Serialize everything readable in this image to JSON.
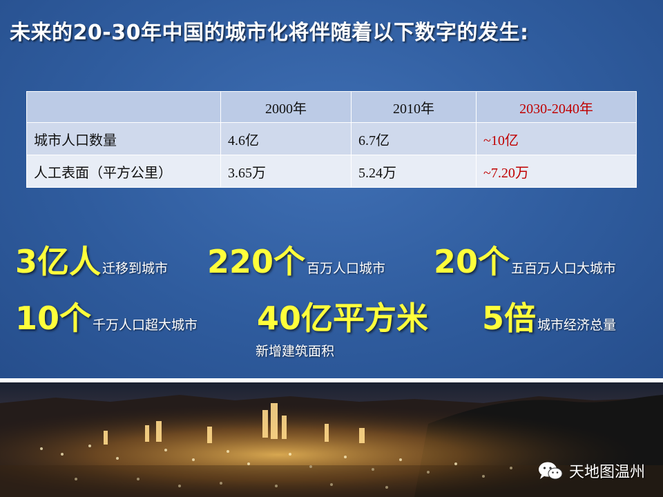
{
  "slide": {
    "title": "未来的20-30年中国的城市化将伴随着以下数字的发生:"
  },
  "table": {
    "headers": [
      "",
      "2000年",
      "2010年",
      "2030-2040年"
    ],
    "rows": [
      {
        "label": "城市人口数量",
        "y2000": "4.6亿",
        "y2010": "6.7亿",
        "future": "~10亿"
      },
      {
        "label": "人工表面（平方公里）",
        "y2000": "3.65万",
        "y2010": "5.24万",
        "future": "~7.20万"
      }
    ],
    "future_color": "#c00000"
  },
  "stats": [
    {
      "big": "3亿人",
      "small": "迁移到城市"
    },
    {
      "big": "220个",
      "small": "百万人口城市"
    },
    {
      "big": "20个",
      "small": "五百万人口大城市"
    },
    {
      "big": "10个",
      "small": "千万人口超大城市"
    },
    {
      "big": "40亿平方米",
      "small": "新增建筑面积"
    },
    {
      "big": "5倍",
      "small": "城市经济总量"
    }
  ],
  "colors": {
    "background": "#2f5c9e",
    "highlight": "#ffff3b"
  },
  "watermark": {
    "icon": "wechat-icon",
    "text": "天地图温州"
  }
}
